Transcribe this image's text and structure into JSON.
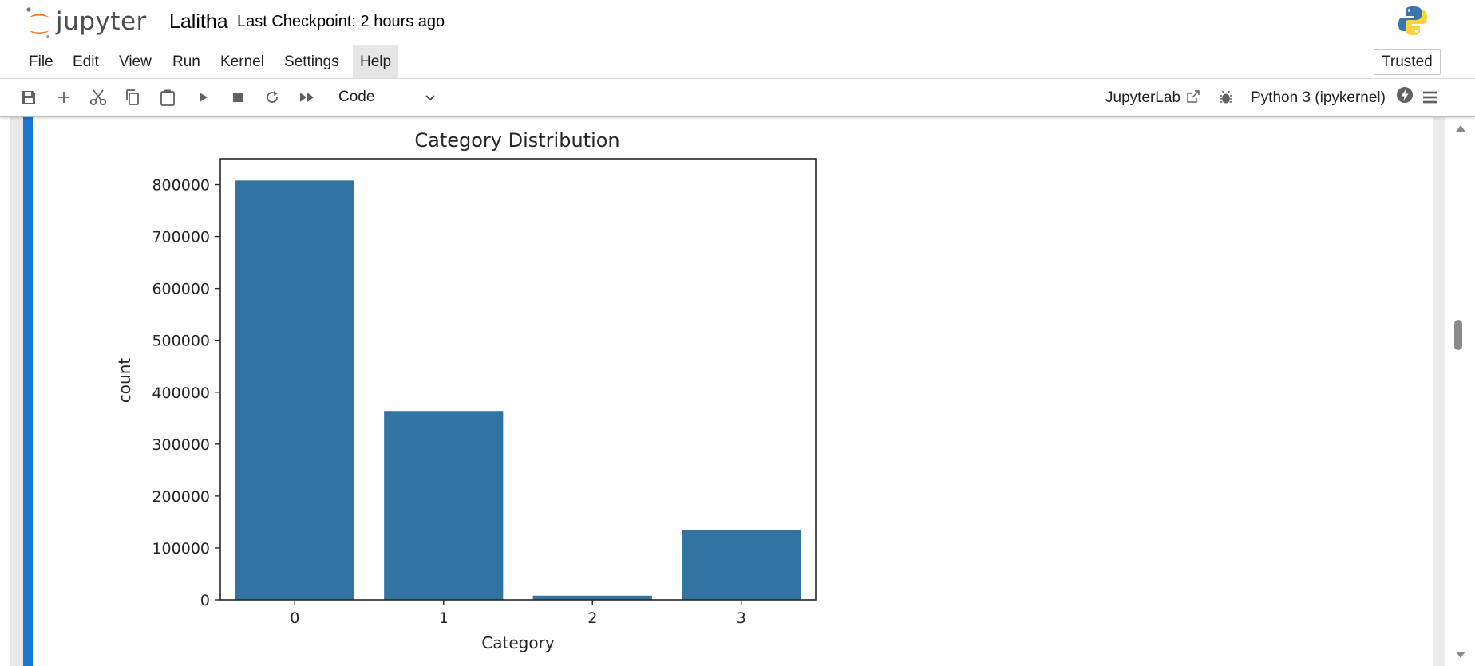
{
  "app": {
    "logo_text": "jupyter",
    "notebook_name": "Lalitha",
    "checkpoint": "Last Checkpoint: 2 hours ago"
  },
  "menu": {
    "items": [
      {
        "label": "File"
      },
      {
        "label": "Edit"
      },
      {
        "label": "View"
      },
      {
        "label": "Run"
      },
      {
        "label": "Kernel"
      },
      {
        "label": "Settings"
      },
      {
        "label": "Help"
      }
    ],
    "trusted_label": "Trusted"
  },
  "toolbar": {
    "icons": [
      "save-icon",
      "add-icon",
      "cut-icon",
      "copy-icon",
      "paste-icon",
      "run-icon",
      "stop-icon",
      "restart-icon",
      "fast-forward-icon"
    ],
    "cell_type": "Code",
    "jupyterlab_label": "JupyterLab",
    "kernel_label": "Python 3 (ipykernel)"
  },
  "colors": {
    "bar": "#3274a1",
    "cell_active": "#1976d2",
    "logo_orange": "#f37726"
  },
  "chart_data": {
    "type": "bar",
    "title": "Category Distribution",
    "xlabel": "Category",
    "ylabel": "count",
    "categories": [
      "0",
      "1",
      "2",
      "3"
    ],
    "values": [
      808000,
      364000,
      8000,
      135000
    ],
    "ylim": [
      0,
      850000
    ],
    "yticks": [
      0,
      100000,
      200000,
      300000,
      400000,
      500000,
      600000,
      700000,
      800000
    ],
    "grid": false
  }
}
